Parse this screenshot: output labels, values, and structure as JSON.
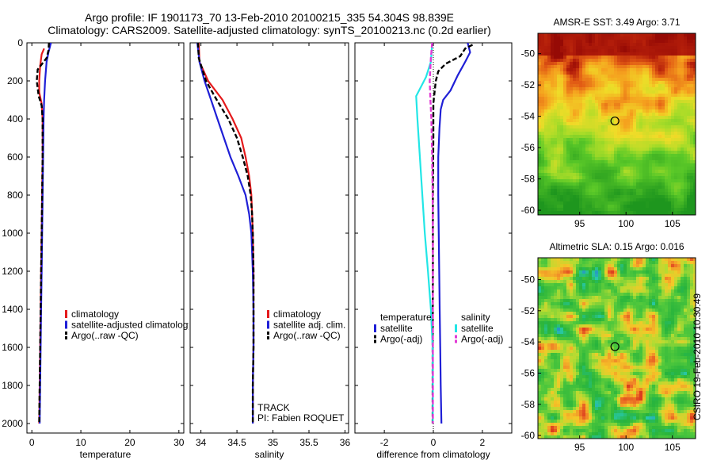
{
  "header": {
    "title1": "Argo profile: IF 1901173_70 13-Feb-2010 20100215_335 54.304S 98.839E",
    "title2": "Climatology: CARS2009. Satellite-adjusted climatology: synTS_20100213.nc (0.2d earlier)"
  },
  "side_label": "CSIRO 19-Feb-2010 10:30:49",
  "colors": {
    "red": "#e41a1c",
    "blue": "#1f1fd6",
    "black": "#000000",
    "cyan": "#22e6e6",
    "magenta": "#e23ad6"
  },
  "chart_data": [
    {
      "id": "temperature",
      "type": "line",
      "xlabel": "temperature",
      "xlim": [
        -1,
        31
      ],
      "ylim": [
        2050,
        0
      ],
      "xticks": [
        0,
        10,
        20,
        30
      ],
      "yticks": [
        0,
        200,
        400,
        600,
        800,
        1000,
        1200,
        1400,
        1600,
        1800,
        2000
      ],
      "legend": [
        "climatology",
        "satellite-adjusted climatology",
        "Argo(..raw -QC)"
      ],
      "series": [
        {
          "name": "climatology",
          "color": "red",
          "style": "solid",
          "points": [
            [
              2.5,
              30
            ],
            [
              2.0,
              60
            ],
            [
              1.7,
              120
            ],
            [
              1.5,
              200
            ],
            [
              1.5,
              260
            ],
            [
              2.0,
              320
            ],
            [
              2.2,
              400
            ],
            [
              2.2,
              600
            ],
            [
              2.1,
              800
            ],
            [
              2.0,
              1000
            ],
            [
              1.9,
              1200
            ],
            [
              1.8,
              1400
            ],
            [
              1.7,
              1600
            ],
            [
              1.6,
              1800
            ],
            [
              1.5,
              2000
            ]
          ]
        },
        {
          "name": "satellite-adjusted climatology",
          "color": "blue",
          "style": "solid",
          "points": [
            [
              3.9,
              0
            ],
            [
              3.4,
              50
            ],
            [
              3.0,
              100
            ],
            [
              2.7,
              200
            ],
            [
              2.5,
              300
            ],
            [
              2.4,
              400
            ],
            [
              2.3,
              600
            ],
            [
              2.2,
              800
            ],
            [
              2.1,
              1000
            ],
            [
              2.0,
              1200
            ],
            [
              1.9,
              1400
            ],
            [
              1.8,
              1600
            ],
            [
              1.7,
              1800
            ],
            [
              1.6,
              2000
            ]
          ]
        },
        {
          "name": "Argo(..raw -QC)",
          "color": "black",
          "style": "dashed",
          "points": [
            [
              3.5,
              0
            ],
            [
              3.4,
              40
            ],
            [
              3.0,
              80
            ],
            [
              1.2,
              140
            ],
            [
              1.0,
              200
            ],
            [
              1.2,
              240
            ],
            [
              1.4,
              280
            ],
            [
              2.0,
              330
            ],
            [
              2.2,
              400
            ],
            [
              2.2,
              600
            ],
            [
              2.1,
              800
            ],
            [
              2.0,
              1000
            ],
            [
              1.9,
              1200
            ],
            [
              1.8,
              1400
            ],
            [
              1.7,
              1600
            ],
            [
              1.6,
              1800
            ],
            [
              1.5,
              2000
            ]
          ]
        }
      ]
    },
    {
      "id": "salinity",
      "type": "line",
      "xlabel": "salinity",
      "xlim": [
        33.85,
        36.05
      ],
      "ylim": [
        2050,
        0
      ],
      "xticks": [
        34,
        34.5,
        35,
        35.5,
        36
      ],
      "legend": [
        "climatology",
        "satellite adj. clim.",
        "Argo(..raw -QC)"
      ],
      "annotations": [
        "TRACK",
        "PI: Fabien ROQUET"
      ],
      "series": [
        {
          "name": "climatology",
          "color": "red",
          "style": "solid",
          "points": [
            [
              33.97,
              0
            ],
            [
              33.98,
              100
            ],
            [
              34.1,
              200
            ],
            [
              34.3,
              300
            ],
            [
              34.44,
              400
            ],
            [
              34.56,
              500
            ],
            [
              34.62,
              600
            ],
            [
              34.67,
              700
            ],
            [
              34.7,
              800
            ],
            [
              34.71,
              900
            ],
            [
              34.72,
              1000
            ],
            [
              34.73,
              1200
            ],
            [
              34.73,
              1400
            ],
            [
              34.73,
              1600
            ],
            [
              34.72,
              1800
            ],
            [
              34.72,
              2000
            ]
          ]
        },
        {
          "name": "satellite adj. clim.",
          "color": "blue",
          "style": "solid",
          "points": [
            [
              33.95,
              0
            ],
            [
              33.98,
              100
            ],
            [
              34.05,
              200
            ],
            [
              34.14,
              300
            ],
            [
              34.23,
              400
            ],
            [
              34.32,
              500
            ],
            [
              34.41,
              600
            ],
            [
              34.52,
              700
            ],
            [
              34.62,
              800
            ],
            [
              34.67,
              900
            ],
            [
              34.7,
              1000
            ],
            [
              34.72,
              1200
            ],
            [
              34.73,
              1400
            ],
            [
              34.73,
              1600
            ],
            [
              34.72,
              1800
            ],
            [
              34.72,
              2000
            ]
          ]
        },
        {
          "name": "Argo(..raw -QC)",
          "color": "black",
          "style": "dashed",
          "points": [
            [
              33.96,
              0
            ],
            [
              33.97,
              80
            ],
            [
              34.07,
              200
            ],
            [
              34.22,
              300
            ],
            [
              34.38,
              400
            ],
            [
              34.5,
              500
            ],
            [
              34.58,
              600
            ],
            [
              34.65,
              700
            ],
            [
              34.69,
              800
            ],
            [
              34.71,
              900
            ],
            [
              34.72,
              1000
            ],
            [
              34.73,
              1200
            ],
            [
              34.73,
              1400
            ],
            [
              34.73,
              1600
            ],
            [
              34.72,
              1800
            ],
            [
              34.72,
              2000
            ]
          ]
        }
      ]
    },
    {
      "id": "difference",
      "type": "line",
      "xlabel": "difference from climatology",
      "xlim": [
        -3.2,
        3.2
      ],
      "ylim": [
        2050,
        0
      ],
      "xticks": [
        -2,
        0,
        2
      ],
      "legend": {
        "temperature": {
          "title": "temperature",
          "items": [
            "satellite",
            "Argo(-adj)"
          ]
        },
        "salinity": {
          "title": "salinity",
          "items": [
            "satellite",
            "Argo(-adj)"
          ]
        }
      },
      "series": [
        {
          "name": "temperature satellite",
          "color": "blue",
          "style": "solid",
          "points": [
            [
              1.4,
              0
            ],
            [
              1.5,
              50
            ],
            [
              1.3,
              100
            ],
            [
              1.0,
              170
            ],
            [
              0.7,
              250
            ],
            [
              0.4,
              300
            ],
            [
              0.3,
              350
            ],
            [
              0.25,
              450
            ],
            [
              0.2,
              600
            ],
            [
              0.2,
              800
            ],
            [
              0.22,
              1000
            ],
            [
              0.24,
              1200
            ],
            [
              0.26,
              1400
            ],
            [
              0.28,
              1600
            ],
            [
              0.3,
              1800
            ],
            [
              0.33,
              2000
            ]
          ]
        },
        {
          "name": "temperature Argo(-adj)",
          "color": "black",
          "style": "dashed",
          "points": [
            [
              1.6,
              10
            ],
            [
              1.3,
              30
            ],
            [
              1.1,
              70
            ],
            [
              0.5,
              110
            ],
            [
              0.2,
              150
            ],
            [
              0.1,
              200
            ],
            [
              0.05,
              260
            ],
            [
              0.0,
              320
            ],
            [
              0.0,
              500
            ],
            [
              -0.02,
              800
            ],
            [
              -0.02,
              1200
            ],
            [
              -0.03,
              1600
            ],
            [
              -0.03,
              2000
            ]
          ]
        },
        {
          "name": "salinity satellite",
          "color": "cyan",
          "style": "solid",
          "points": [
            [
              -0.05,
              0
            ],
            [
              -0.1,
              100
            ],
            [
              -0.3,
              180
            ],
            [
              -0.7,
              280
            ],
            [
              -0.65,
              400
            ],
            [
              -0.55,
              600
            ],
            [
              -0.45,
              800
            ],
            [
              -0.35,
              1000
            ],
            [
              -0.22,
              1200
            ],
            [
              -0.1,
              1400
            ],
            [
              -0.03,
              1600
            ],
            [
              -0.02,
              1800
            ],
            [
              -0.02,
              2000
            ]
          ]
        },
        {
          "name": "salinity Argo(-adj)",
          "color": "magenta",
          "style": "dashed",
          "points": [
            [
              -0.05,
              0
            ],
            [
              -0.1,
              80
            ],
            [
              -0.15,
              200
            ],
            [
              -0.12,
              300
            ],
            [
              -0.08,
              400
            ],
            [
              -0.05,
              600
            ],
            [
              -0.03,
              800
            ],
            [
              -0.02,
              1000
            ],
            [
              -0.02,
              1400
            ],
            [
              -0.02,
              2000
            ]
          ]
        }
      ]
    },
    {
      "id": "sst_map",
      "type": "heatmap",
      "title": "AMSR-E SST: 3.49 Argo: 3.71",
      "xlim": [
        90.5,
        107.5
      ],
      "ylim": [
        -60.3,
        -48.7
      ],
      "xticks": [
        95,
        100,
        105
      ],
      "yticks": [
        -50,
        -52,
        -54,
        -56,
        -58,
        -60
      ],
      "marker": [
        98.8,
        -54.3
      ],
      "palette": "warm"
    },
    {
      "id": "sla_map",
      "type": "heatmap",
      "title": "Altimetric SLA: 0.15 Argo: 0.016",
      "xlim": [
        90.5,
        107.5
      ],
      "ylim": [
        -60.2,
        -48.6
      ],
      "xticks": [
        95,
        100,
        105
      ],
      "yticks": [
        -50,
        -52,
        -54,
        -56,
        -58,
        -60
      ],
      "marker": [
        98.8,
        -54.3
      ],
      "palette": "anomaly"
    }
  ]
}
